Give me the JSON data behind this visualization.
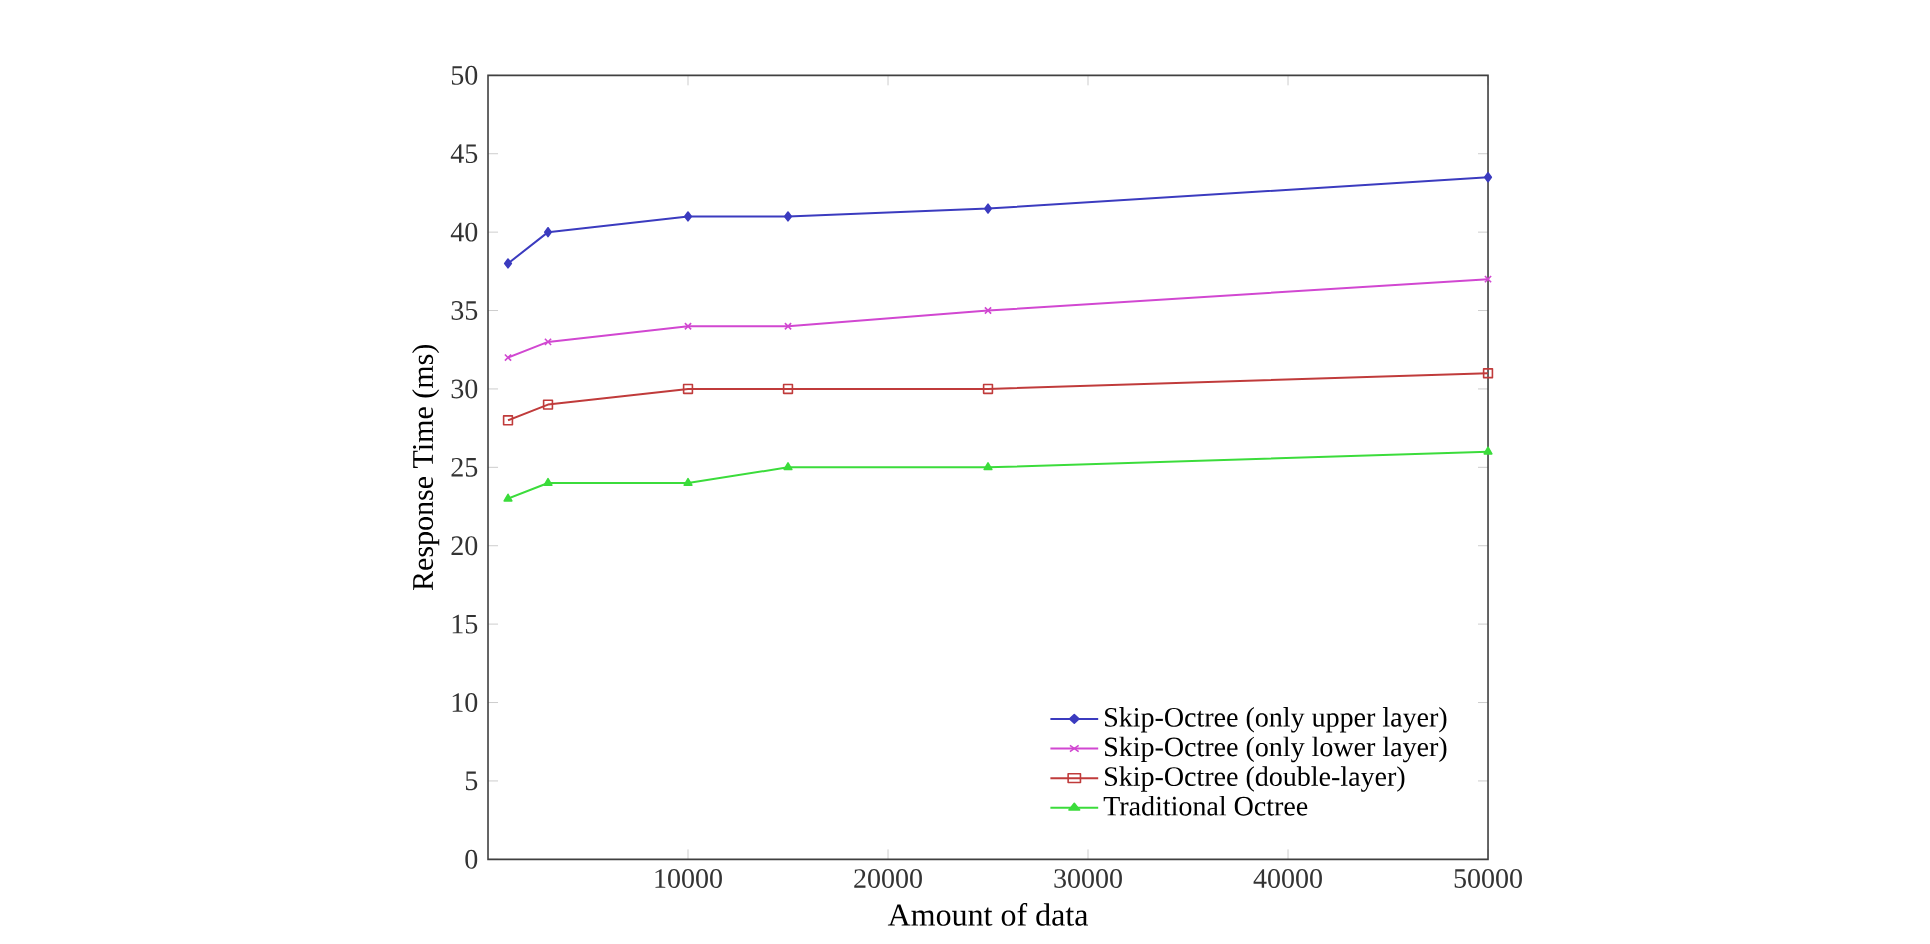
{
  "chart_data": {
    "type": "line",
    "xlabel": "Amount of data",
    "ylabel": "Response Time (ms)",
    "x": [
      1000,
      3000,
      10000,
      15000,
      25000,
      50000
    ],
    "series": [
      {
        "name": "Skip-Octree (only upper layer)",
        "color": "#3b3bbf",
        "marker": "diamond",
        "values": [
          38,
          40,
          41,
          41,
          41.5,
          43.5
        ]
      },
      {
        "name": "Skip-Octree (only lower layer)",
        "color": "#d147d1",
        "marker": "cross",
        "values": [
          32,
          33,
          34,
          34,
          35,
          37
        ]
      },
      {
        "name": "Skip-Octree (double-layer)",
        "color": "#c03b3b",
        "marker": "square",
        "values": [
          28,
          29,
          30,
          30,
          30,
          31
        ]
      },
      {
        "name": "Traditional Octree",
        "color": "#3bdc3b",
        "marker": "triangle",
        "values": [
          23,
          24,
          24,
          25,
          25,
          26
        ]
      }
    ],
    "xlim": [
      0,
      50000
    ],
    "xticks": [
      10000,
      20000,
      30000,
      40000,
      50000
    ],
    "ylim": [
      0,
      50
    ],
    "yticks": [
      0,
      5,
      10,
      15,
      20,
      25,
      30,
      35,
      40,
      45,
      50
    ],
    "grid": false,
    "legend": "bottom right",
    "line_style": "solid"
  }
}
